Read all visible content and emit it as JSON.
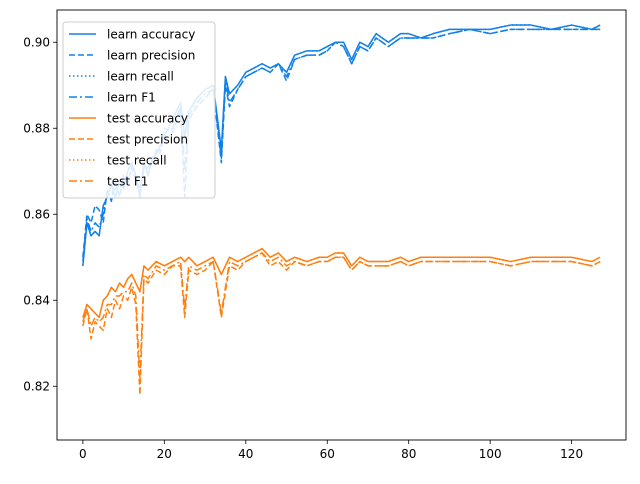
{
  "chart_data": {
    "type": "line",
    "title": "",
    "xlabel": "",
    "ylabel": "",
    "xlim": [
      -6.35,
      133.35
    ],
    "ylim": [
      0.8075,
      0.9075
    ],
    "x_ticks": [
      0,
      20,
      40,
      60,
      80,
      100,
      120
    ],
    "y_ticks": [
      0.82,
      0.84,
      0.86,
      0.88,
      0.9
    ],
    "legend_position": "top-left",
    "grid": false,
    "colors": {
      "learn": "#1180e8",
      "test": "#ff7f0e"
    },
    "series": [
      {
        "name": "learn accuracy",
        "color": "#1180e8",
        "dash": "solid",
        "x": [
          0,
          1,
          2,
          3,
          4,
          5,
          6,
          7,
          8,
          9,
          10,
          11,
          12,
          13,
          14,
          15,
          16,
          17,
          18,
          19,
          20,
          22,
          24,
          25,
          26,
          28,
          30,
          32,
          34,
          35,
          36,
          38,
          40,
          42,
          44,
          46,
          48,
          50,
          52,
          55,
          58,
          60,
          62,
          64,
          66,
          68,
          70,
          72,
          75,
          78,
          80,
          83,
          86,
          90,
          95,
          100,
          105,
          110,
          115,
          120,
          125,
          127
        ],
        "values": [
          0.848,
          0.858,
          0.855,
          0.856,
          0.855,
          0.862,
          0.864,
          0.867,
          0.864,
          0.868,
          0.866,
          0.87,
          0.872,
          0.869,
          0.864,
          0.872,
          0.869,
          0.873,
          0.874,
          0.876,
          0.878,
          0.882,
          0.886,
          0.878,
          0.884,
          0.887,
          0.889,
          0.89,
          0.875,
          0.892,
          0.888,
          0.89,
          0.893,
          0.894,
          0.895,
          0.894,
          0.895,
          0.893,
          0.897,
          0.898,
          0.898,
          0.899,
          0.9,
          0.9,
          0.896,
          0.9,
          0.899,
          0.902,
          0.9,
          0.902,
          0.902,
          0.901,
          0.902,
          0.903,
          0.903,
          0.903,
          0.904,
          0.904,
          0.903,
          0.904,
          0.903,
          0.904
        ]
      },
      {
        "name": "learn precision",
        "color": "#1180e8",
        "dash": "dashed",
        "x": [
          0,
          1,
          2,
          3,
          4,
          5,
          6,
          7,
          8,
          9,
          10,
          11,
          12,
          13,
          14,
          15,
          16,
          17,
          18,
          19,
          20,
          22,
          24,
          25,
          26,
          28,
          30,
          32,
          34,
          35,
          36,
          38,
          40,
          42,
          44,
          46,
          48,
          50,
          52,
          55,
          58,
          60,
          62,
          64,
          66,
          68,
          70,
          72,
          75,
          78,
          80,
          83,
          86,
          90,
          95,
          100,
          105,
          110,
          115,
          120,
          125,
          127
        ],
        "values": [
          0.85,
          0.86,
          0.858,
          0.862,
          0.861,
          0.858,
          0.866,
          0.863,
          0.868,
          0.864,
          0.869,
          0.867,
          0.871,
          0.868,
          0.866,
          0.87,
          0.871,
          0.872,
          0.875,
          0.874,
          0.88,
          0.879,
          0.884,
          0.864,
          0.882,
          0.885,
          0.887,
          0.889,
          0.872,
          0.89,
          0.885,
          0.889,
          0.892,
          0.893,
          0.894,
          0.893,
          0.895,
          0.891,
          0.896,
          0.897,
          0.897,
          0.898,
          0.9,
          0.899,
          0.895,
          0.899,
          0.898,
          0.901,
          0.899,
          0.901,
          0.901,
          0.901,
          0.901,
          0.902,
          0.903,
          0.902,
          0.903,
          0.903,
          0.903,
          0.903,
          0.903,
          0.903
        ]
      },
      {
        "name": "learn recall",
        "color": "#1180e8",
        "dash": "dotted",
        "x": [
          0,
          1,
          2,
          3,
          4,
          5,
          6,
          7,
          8,
          9,
          10,
          11,
          12,
          13,
          14,
          15,
          16,
          17,
          18,
          19,
          20,
          22,
          24,
          25,
          26,
          28,
          30,
          32,
          34,
          35,
          36,
          38,
          40,
          42,
          44,
          46,
          48,
          50,
          52,
          55,
          58,
          60,
          62,
          64,
          66,
          68,
          70,
          72,
          75,
          78,
          80,
          83,
          86,
          90,
          95,
          100,
          105,
          110,
          115,
          120,
          125,
          127
        ],
        "values": [
          0.848,
          0.858,
          0.855,
          0.856,
          0.855,
          0.862,
          0.864,
          0.867,
          0.864,
          0.868,
          0.866,
          0.87,
          0.872,
          0.869,
          0.864,
          0.872,
          0.869,
          0.873,
          0.874,
          0.876,
          0.878,
          0.882,
          0.886,
          0.878,
          0.884,
          0.887,
          0.889,
          0.89,
          0.875,
          0.892,
          0.888,
          0.89,
          0.893,
          0.894,
          0.895,
          0.894,
          0.895,
          0.893,
          0.897,
          0.898,
          0.898,
          0.899,
          0.9,
          0.9,
          0.896,
          0.9,
          0.899,
          0.902,
          0.9,
          0.902,
          0.902,
          0.901,
          0.902,
          0.903,
          0.903,
          0.903,
          0.904,
          0.904,
          0.903,
          0.904,
          0.903,
          0.904
        ]
      },
      {
        "name": "learn F1",
        "color": "#1180e8",
        "dash": "dashdot",
        "x": [
          0,
          1,
          2,
          3,
          4,
          5,
          6,
          7,
          8,
          9,
          10,
          11,
          12,
          13,
          14,
          15,
          16,
          17,
          18,
          19,
          20,
          22,
          24,
          25,
          26,
          28,
          30,
          32,
          34,
          35,
          36,
          38,
          40,
          42,
          44,
          46,
          48,
          50,
          52,
          55,
          58,
          60,
          62,
          64,
          66,
          68,
          70,
          72,
          75,
          78,
          80,
          83,
          86,
          90,
          95,
          100,
          105,
          110,
          115,
          120,
          125,
          127
        ],
        "values": [
          0.849,
          0.859,
          0.856,
          0.858,
          0.857,
          0.86,
          0.865,
          0.865,
          0.866,
          0.866,
          0.867,
          0.868,
          0.871,
          0.868,
          0.865,
          0.871,
          0.87,
          0.872,
          0.874,
          0.875,
          0.879,
          0.88,
          0.885,
          0.87,
          0.883,
          0.886,
          0.888,
          0.889,
          0.873,
          0.891,
          0.886,
          0.889,
          0.892,
          0.893,
          0.894,
          0.893,
          0.895,
          0.892,
          0.896,
          0.897,
          0.897,
          0.898,
          0.9,
          0.899,
          0.895,
          0.899,
          0.898,
          0.901,
          0.899,
          0.901,
          0.901,
          0.901,
          0.901,
          0.902,
          0.903,
          0.902,
          0.903,
          0.903,
          0.903,
          0.903,
          0.903,
          0.903
        ]
      },
      {
        "name": "test accuracy",
        "color": "#ff7f0e",
        "dash": "solid",
        "x": [
          0,
          1,
          2,
          3,
          4,
          5,
          6,
          7,
          8,
          9,
          10,
          11,
          12,
          13,
          14,
          15,
          16,
          18,
          20,
          22,
          24,
          25,
          26,
          28,
          30,
          32,
          34,
          36,
          38,
          40,
          42,
          44,
          46,
          48,
          50,
          52,
          55,
          58,
          60,
          62,
          64,
          66,
          68,
          70,
          72,
          75,
          78,
          80,
          83,
          86,
          90,
          95,
          100,
          105,
          110,
          115,
          120,
          125,
          127
        ],
        "values": [
          0.836,
          0.839,
          0.838,
          0.837,
          0.836,
          0.84,
          0.841,
          0.843,
          0.842,
          0.844,
          0.843,
          0.845,
          0.846,
          0.844,
          0.842,
          0.848,
          0.847,
          0.849,
          0.848,
          0.849,
          0.85,
          0.849,
          0.85,
          0.848,
          0.849,
          0.85,
          0.846,
          0.85,
          0.849,
          0.85,
          0.851,
          0.852,
          0.85,
          0.851,
          0.849,
          0.85,
          0.849,
          0.85,
          0.85,
          0.851,
          0.851,
          0.848,
          0.85,
          0.849,
          0.849,
          0.849,
          0.85,
          0.849,
          0.85,
          0.85,
          0.85,
          0.85,
          0.85,
          0.849,
          0.85,
          0.85,
          0.85,
          0.849,
          0.85
        ]
      },
      {
        "name": "test precision",
        "color": "#ff7f0e",
        "dash": "dashed",
        "x": [
          0,
          1,
          2,
          3,
          4,
          5,
          6,
          7,
          8,
          9,
          10,
          11,
          12,
          13,
          14,
          15,
          16,
          18,
          20,
          22,
          24,
          25,
          26,
          28,
          30,
          32,
          34,
          36,
          38,
          40,
          42,
          44,
          46,
          48,
          50,
          52,
          55,
          58,
          60,
          62,
          64,
          66,
          68,
          70,
          72,
          75,
          78,
          80,
          83,
          86,
          90,
          95,
          100,
          105,
          110,
          115,
          120,
          125,
          127
        ],
        "values": [
          0.834,
          0.838,
          0.831,
          0.835,
          0.834,
          0.833,
          0.838,
          0.836,
          0.84,
          0.838,
          0.841,
          0.84,
          0.843,
          0.839,
          0.818,
          0.845,
          0.844,
          0.847,
          0.846,
          0.848,
          0.848,
          0.836,
          0.847,
          0.846,
          0.847,
          0.849,
          0.836,
          0.848,
          0.847,
          0.849,
          0.85,
          0.851,
          0.848,
          0.849,
          0.847,
          0.849,
          0.848,
          0.849,
          0.849,
          0.85,
          0.85,
          0.847,
          0.849,
          0.848,
          0.848,
          0.848,
          0.849,
          0.848,
          0.849,
          0.849,
          0.849,
          0.849,
          0.849,
          0.848,
          0.849,
          0.849,
          0.849,
          0.848,
          0.849
        ]
      },
      {
        "name": "test recall",
        "color": "#ff7f0e",
        "dash": "dotted",
        "x": [
          0,
          1,
          2,
          3,
          4,
          5,
          6,
          7,
          8,
          9,
          10,
          11,
          12,
          13,
          14,
          15,
          16,
          18,
          20,
          22,
          24,
          25,
          26,
          28,
          30,
          32,
          34,
          36,
          38,
          40,
          42,
          44,
          46,
          48,
          50,
          52,
          55,
          58,
          60,
          62,
          64,
          66,
          68,
          70,
          72,
          75,
          78,
          80,
          83,
          86,
          90,
          95,
          100,
          105,
          110,
          115,
          120,
          125,
          127
        ],
        "values": [
          0.836,
          0.839,
          0.838,
          0.837,
          0.836,
          0.84,
          0.841,
          0.843,
          0.842,
          0.844,
          0.843,
          0.845,
          0.846,
          0.844,
          0.842,
          0.848,
          0.847,
          0.849,
          0.848,
          0.849,
          0.85,
          0.849,
          0.85,
          0.848,
          0.849,
          0.85,
          0.846,
          0.85,
          0.849,
          0.85,
          0.851,
          0.852,
          0.85,
          0.851,
          0.849,
          0.85,
          0.849,
          0.85,
          0.85,
          0.851,
          0.851,
          0.848,
          0.85,
          0.849,
          0.849,
          0.849,
          0.85,
          0.849,
          0.85,
          0.85,
          0.85,
          0.85,
          0.85,
          0.849,
          0.85,
          0.85,
          0.85,
          0.849,
          0.85
        ]
      },
      {
        "name": "test F1",
        "color": "#ff7f0e",
        "dash": "dashdot",
        "x": [
          0,
          1,
          2,
          3,
          4,
          5,
          6,
          7,
          8,
          9,
          10,
          11,
          12,
          13,
          14,
          15,
          16,
          18,
          20,
          22,
          24,
          25,
          26,
          28,
          30,
          32,
          34,
          36,
          38,
          40,
          42,
          44,
          46,
          48,
          50,
          52,
          55,
          58,
          60,
          62,
          64,
          66,
          68,
          70,
          72,
          75,
          78,
          80,
          83,
          86,
          90,
          95,
          100,
          105,
          110,
          115,
          120,
          125,
          127
        ],
        "values": [
          0.835,
          0.838,
          0.834,
          0.836,
          0.835,
          0.836,
          0.839,
          0.839,
          0.841,
          0.841,
          0.842,
          0.842,
          0.844,
          0.841,
          0.822,
          0.846,
          0.845,
          0.848,
          0.847,
          0.848,
          0.849,
          0.838,
          0.848,
          0.847,
          0.848,
          0.849,
          0.837,
          0.849,
          0.848,
          0.849,
          0.85,
          0.851,
          0.849,
          0.85,
          0.848,
          0.849,
          0.848,
          0.849,
          0.849,
          0.85,
          0.85,
          0.847,
          0.849,
          0.848,
          0.848,
          0.848,
          0.849,
          0.848,
          0.849,
          0.849,
          0.849,
          0.849,
          0.849,
          0.848,
          0.849,
          0.849,
          0.849,
          0.848,
          0.849
        ]
      }
    ]
  }
}
